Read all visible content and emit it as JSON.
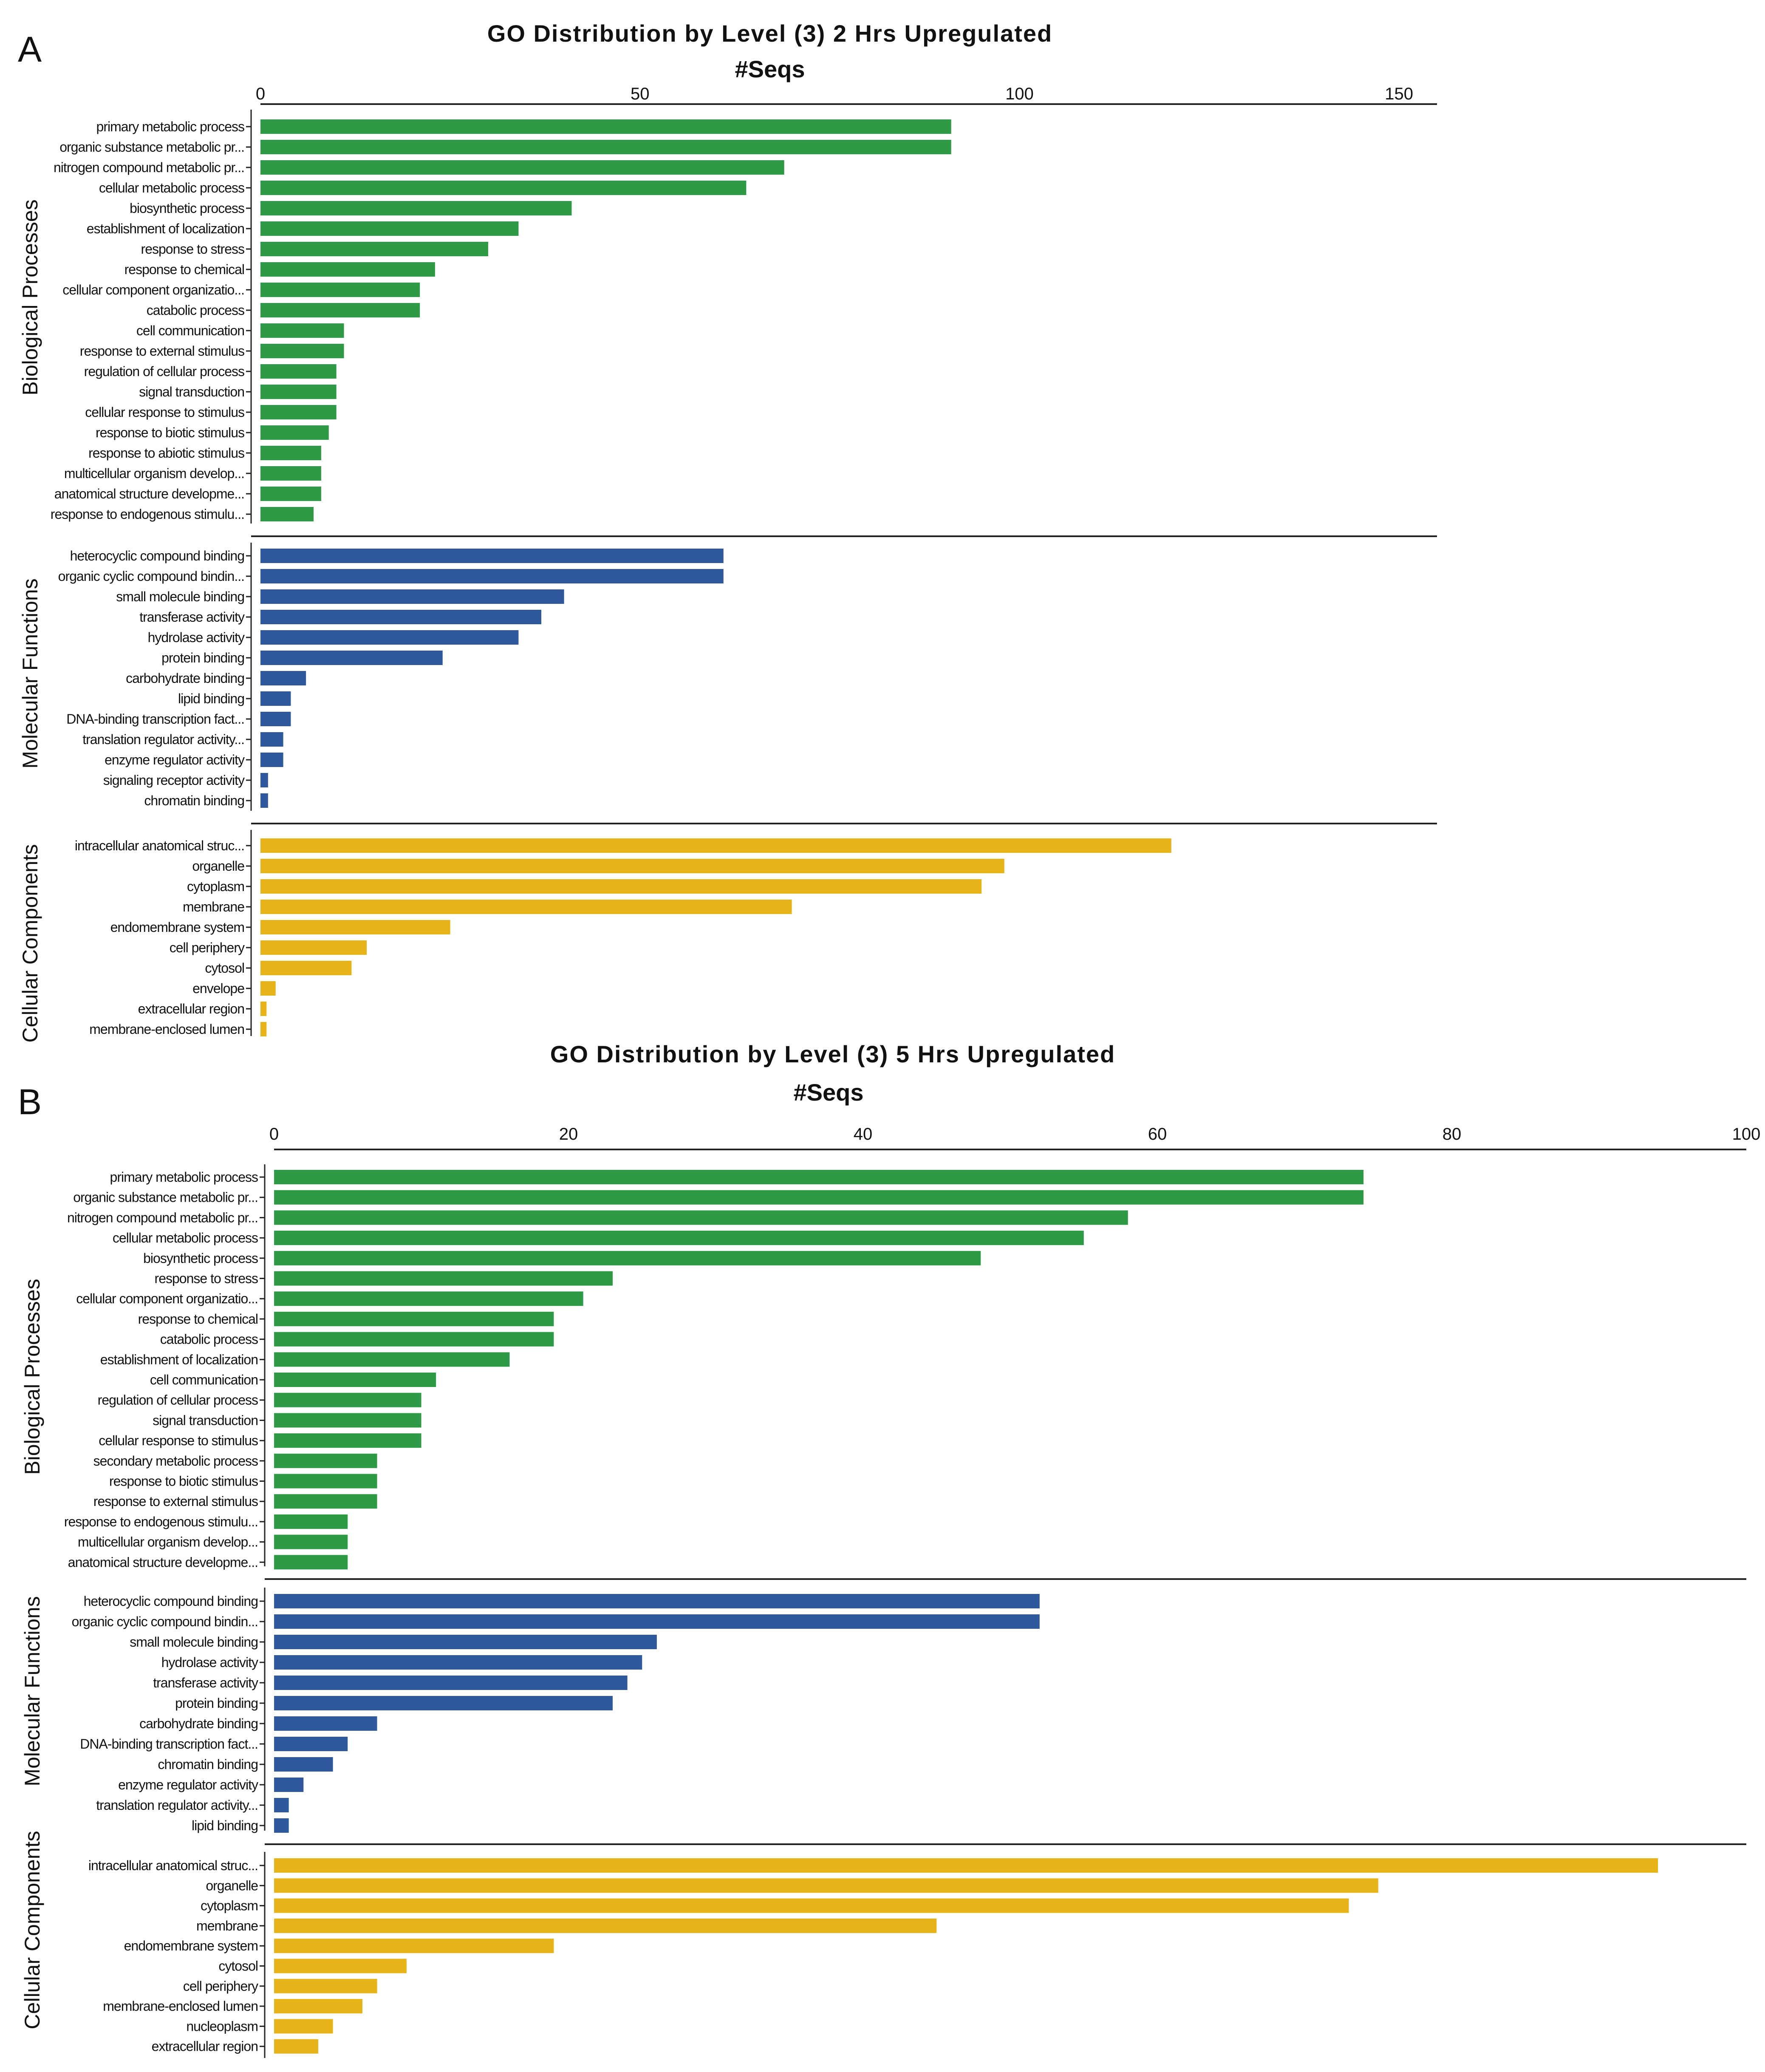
{
  "colors": {
    "biological": "#2f9a45",
    "molecular": "#30589c",
    "cellular": "#e6b419",
    "axis": "#222222"
  },
  "chart_data": [
    {
      "type": "bar",
      "orientation": "horizontal",
      "panel_label": "A",
      "title": "GO Distribution  by Level (3)  2 Hrs  Upregulated",
      "xlabel": "#Seqs",
      "xlim": [
        0,
        155
      ],
      "xticks": [
        0,
        50,
        100,
        150
      ],
      "groups": [
        {
          "name": "Biological Processes",
          "color_key": "biological",
          "categories": [
            "primary metabolic process",
            "organic substance metabolic pr...",
            "nitrogen compound metabolic pr...",
            "cellular metabolic process",
            "biosynthetic process",
            "establishment of localization",
            "response to stress",
            "response to chemical",
            "cellular component organizatio...",
            "catabolic process",
            "cell communication",
            "response to external stimulus",
            "regulation of cellular process",
            "signal transduction",
            "cellular response to stimulus",
            "response to biotic stimulus",
            "response to abiotic stimulus",
            "multicellular organism develop...",
            "anatomical structure developme...",
            "response to endogenous stimulu..."
          ],
          "values": [
            91,
            91,
            69,
            64,
            41,
            34,
            30,
            23,
            21,
            21,
            11,
            11,
            10,
            10,
            10,
            9,
            8,
            8,
            8,
            7
          ]
        },
        {
          "name": "Molecular Functions",
          "color_key": "molecular",
          "categories": [
            "heterocyclic compound binding",
            "organic cyclic compound bindin...",
            "small molecule binding",
            "transferase activity",
            "hydrolase activity",
            "protein binding",
            "carbohydrate binding",
            "lipid binding",
            "DNA-binding transcription fact...",
            "translation regulator activity...",
            "enzyme regulator activity",
            "signaling receptor activity",
            "chromatin binding"
          ],
          "values": [
            61,
            61,
            40,
            37,
            34,
            24,
            6,
            4,
            4,
            3,
            3,
            1,
            1
          ]
        },
        {
          "name": "Cellular  Components",
          "color_key": "cellular",
          "categories": [
            "intracellular anatomical struc...",
            "organelle",
            "cytoplasm",
            "membrane",
            "endomembrane system",
            "cell periphery",
            "cytosol",
            "envelope",
            "extracellular region",
            "membrane-enclosed lumen"
          ],
          "values": [
            120,
            98,
            95,
            70,
            25,
            14,
            12,
            2,
            0.8,
            0.8
          ]
        }
      ]
    },
    {
      "type": "bar",
      "orientation": "horizontal",
      "panel_label": "B",
      "title": "GO Distribution  by Level (3)  5 Hrs  Upregulated",
      "xlabel": "#Seqs",
      "xlim": [
        0,
        100
      ],
      "xticks": [
        0,
        20,
        40,
        60,
        80,
        100
      ],
      "groups": [
        {
          "name": "Biological Processes",
          "color_key": "biological",
          "categories": [
            "primary metabolic process",
            "organic substance metabolic pr...",
            "nitrogen compound metabolic pr...",
            "cellular metabolic process",
            "biosynthetic process",
            "response to stress",
            "cellular component organizatio...",
            "response to chemical",
            "catabolic process",
            "establishment of localization",
            "cell communication",
            "regulation of cellular process",
            "signal transduction",
            "cellular response to stimulus",
            "secondary metabolic process",
            "response to biotic stimulus",
            "response to external stimulus",
            "response to endogenous stimulu...",
            "multicellular organism develop...",
            "anatomical structure developme..."
          ],
          "values": [
            74,
            74,
            58,
            55,
            48,
            23,
            21,
            19,
            19,
            16,
            11,
            10,
            10,
            10,
            7,
            7,
            7,
            5,
            5,
            5
          ]
        },
        {
          "name": "Molecular Functions",
          "color_key": "molecular",
          "categories": [
            "heterocyclic compound binding",
            "organic cyclic compound bindin...",
            "small molecule binding",
            "hydrolase activity",
            "transferase activity",
            "protein binding",
            "carbohydrate binding",
            "DNA-binding transcription fact...",
            "chromatin binding",
            "enzyme regulator activity",
            "translation regulator activity...",
            "lipid binding"
          ],
          "values": [
            52,
            52,
            26,
            25,
            24,
            23,
            7,
            5,
            4,
            2,
            1,
            1
          ]
        },
        {
          "name": "Cellular  Components",
          "color_key": "cellular",
          "categories": [
            "intracellular anatomical struc...",
            "organelle",
            "cytoplasm",
            "membrane",
            "endomembrane system",
            "cytosol",
            "cell periphery",
            "membrane-enclosed lumen",
            "nucleoplasm",
            "extracellular region"
          ],
          "values": [
            94,
            75,
            73,
            45,
            19,
            9,
            7,
            6,
            4,
            3
          ]
        }
      ]
    }
  ]
}
